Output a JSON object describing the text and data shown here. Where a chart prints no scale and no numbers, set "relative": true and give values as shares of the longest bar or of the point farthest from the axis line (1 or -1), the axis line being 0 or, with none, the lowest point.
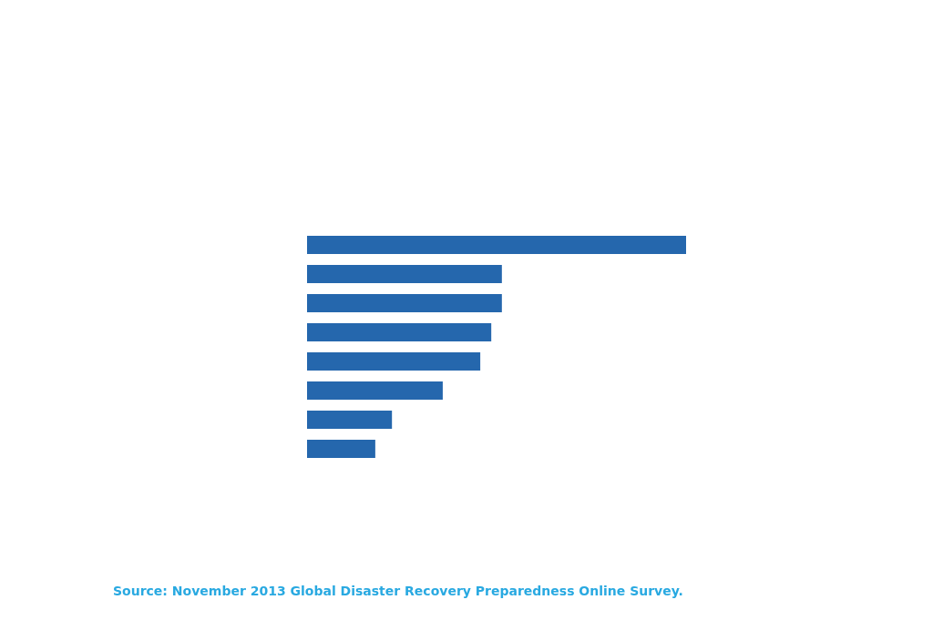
{
  "chart_data": {
    "type": "bar",
    "orientation": "horizontal",
    "relative": true,
    "categories": [
      null,
      null,
      null,
      null,
      null,
      null,
      null,
      null
    ],
    "values": [
      1,
      0.514,
      0.514,
      0.486,
      0.457,
      0.358,
      0.224,
      0.18
    ],
    "color": "#2567ad",
    "annotations": [
      "Source: November 2013 Global Disaster Recovery Preparedness Online Survey."
    ]
  }
}
